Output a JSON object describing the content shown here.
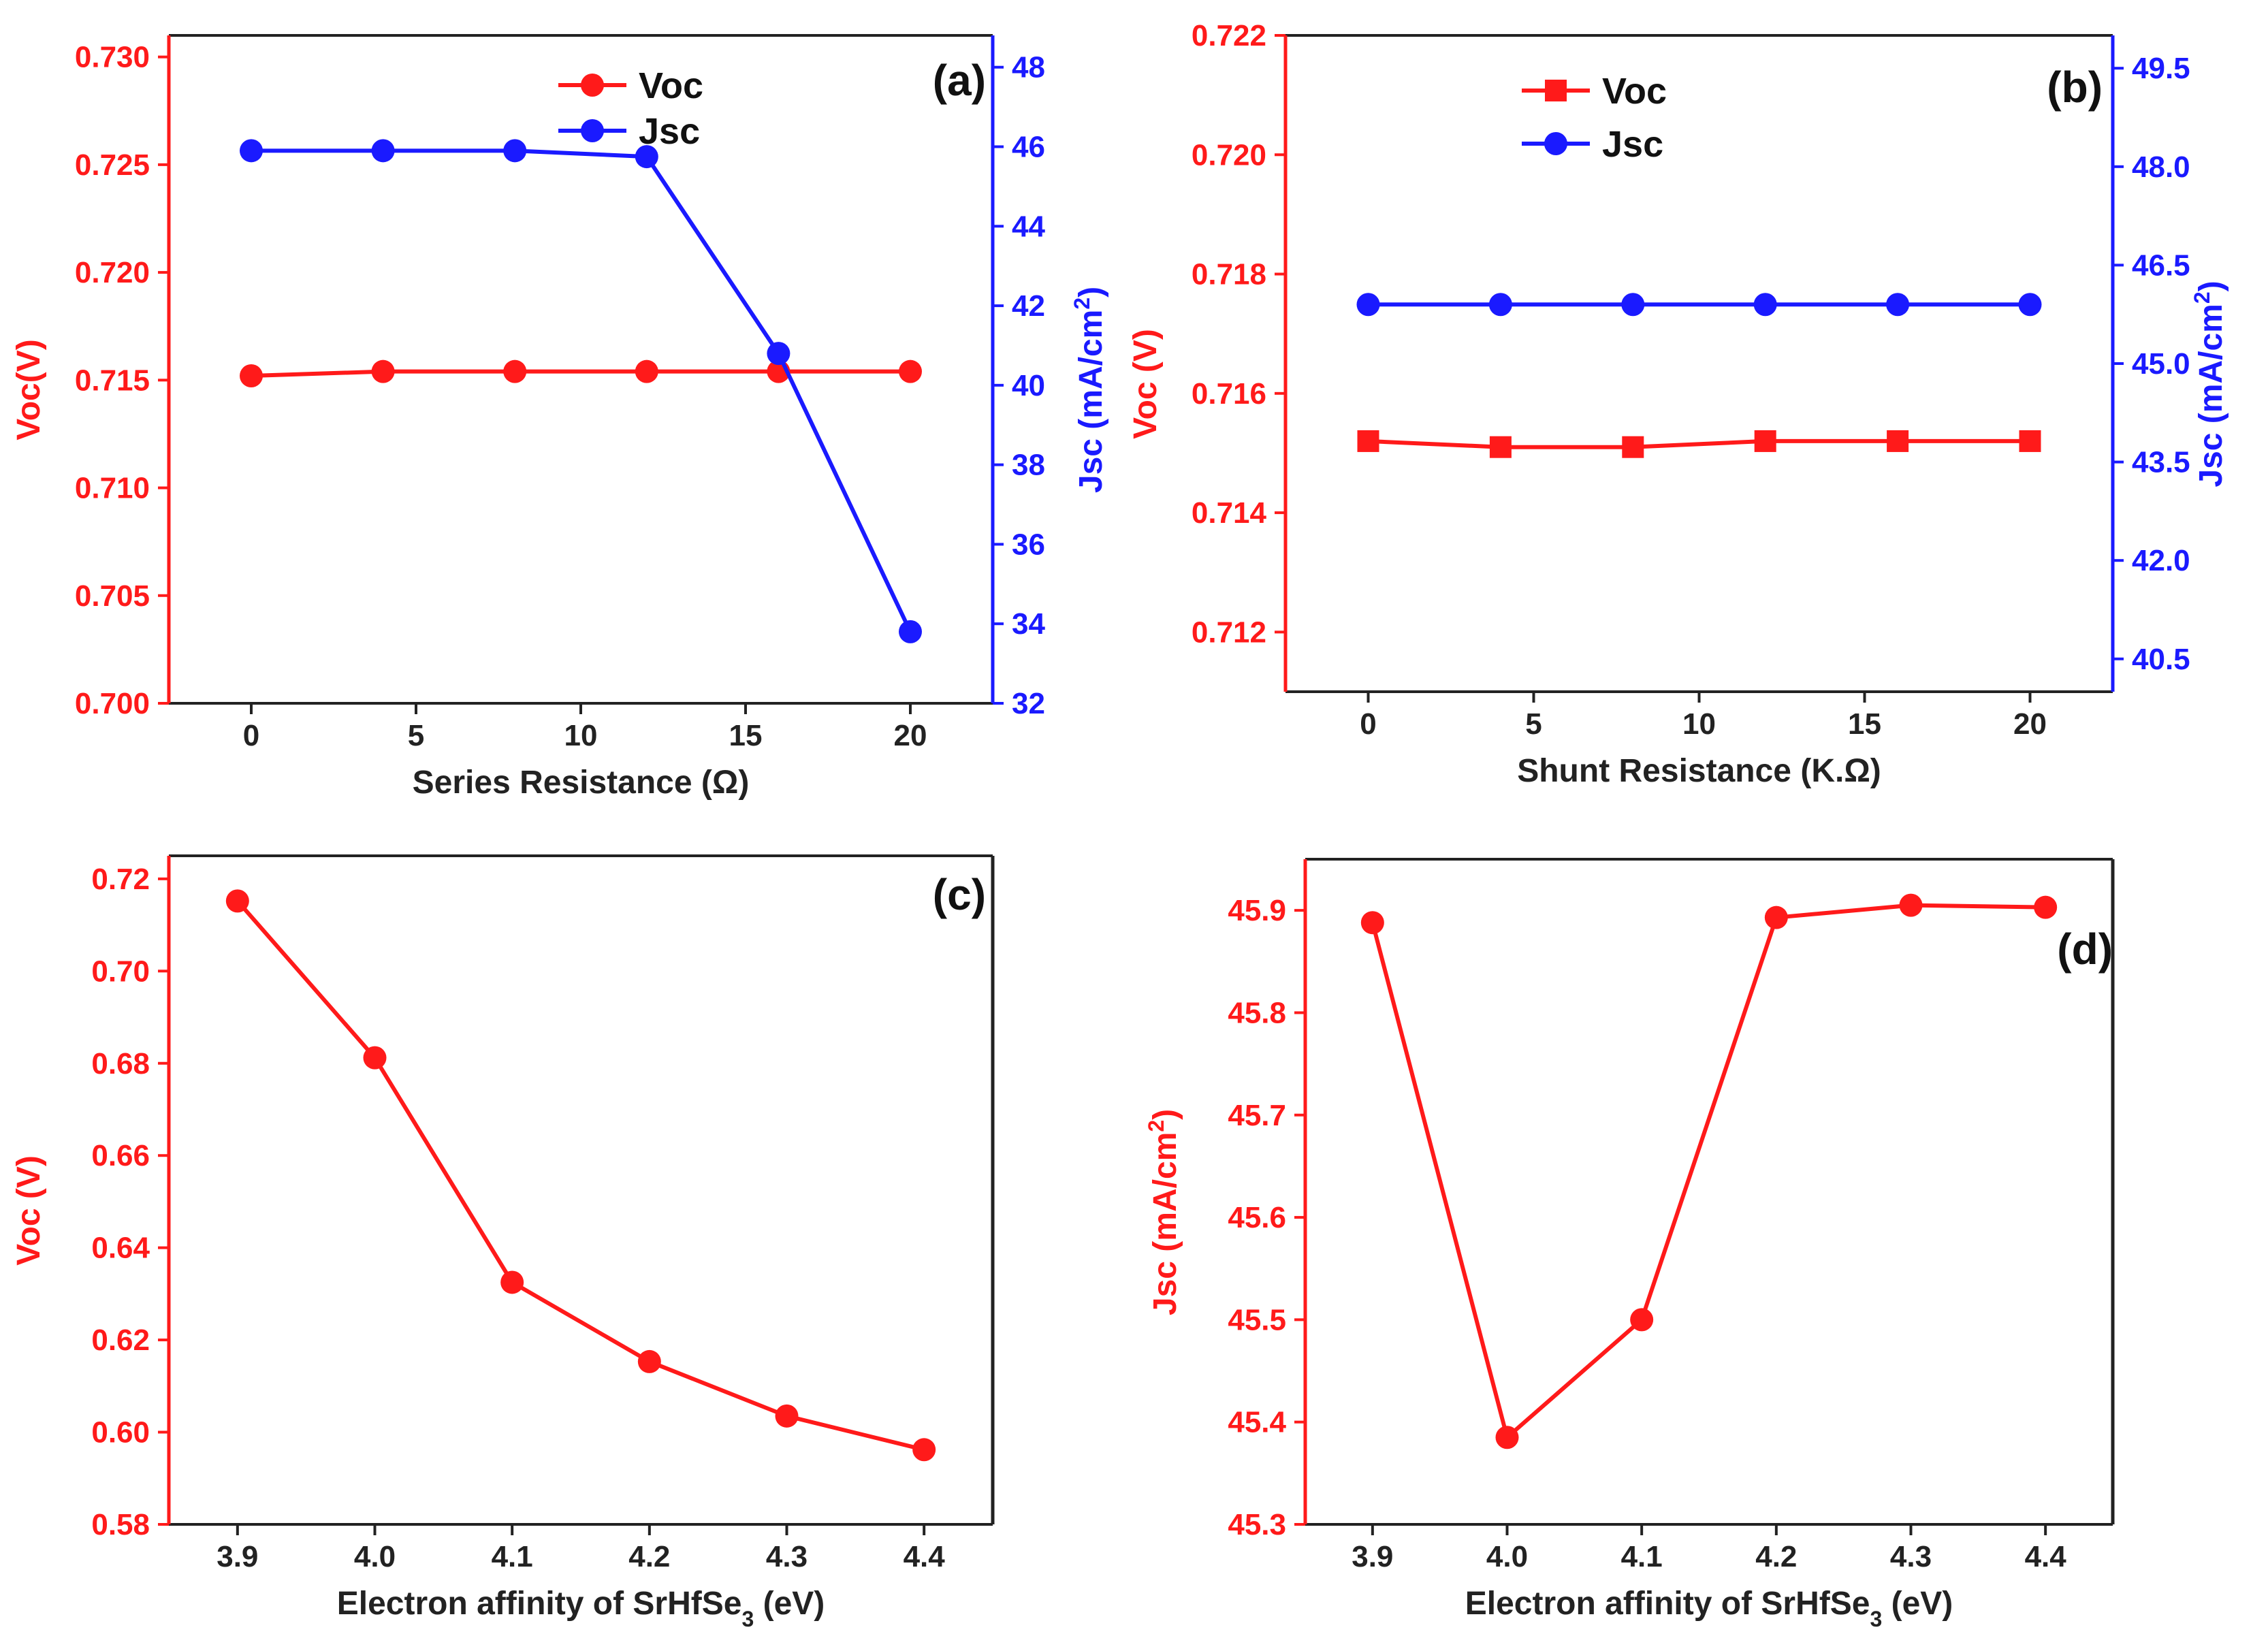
{
  "chart_data": [
    {
      "panel_label": "(a)",
      "type": "line",
      "xlabel": "Series Resistance (Ω)",
      "xlim": [
        -2.5,
        22.5
      ],
      "xticks": [
        0,
        5,
        10,
        15,
        20
      ],
      "x": [
        0,
        4,
        8,
        12,
        16,
        20
      ],
      "y_left": {
        "label": "Voc(V)",
        "color": "#ff1a1a",
        "lim": [
          0.7,
          0.731
        ],
        "ticks": [
          "0.700",
          "0.705",
          "0.710",
          "0.715",
          "0.720",
          "0.725",
          "0.730"
        ]
      },
      "y_right": {
        "label": "Jsc (mA/cm",
        "sup": "2",
        "label_end": ")",
        "color": "#1a1aff",
        "lim": [
          32,
          48.8
        ],
        "ticks": [
          "32",
          "34",
          "36",
          "38",
          "40",
          "42",
          "44",
          "46",
          "48"
        ]
      },
      "series": [
        {
          "name": "Voc",
          "axis": "left",
          "marker": "circle",
          "color": "#ff1a1a",
          "values": [
            0.7152,
            0.7154,
            0.7154,
            0.7154,
            0.7154,
            0.7154
          ]
        },
        {
          "name": "Jsc",
          "axis": "right",
          "marker": "circle",
          "color": "#1a1aff",
          "values": [
            45.9,
            45.9,
            45.9,
            45.75,
            40.8,
            33.8
          ]
        }
      ],
      "legend": "top-center"
    },
    {
      "panel_label": "(b)",
      "type": "line",
      "xlabel": "Shunt Resistance (K.Ω)",
      "xlim": [
        -2.5,
        22.5
      ],
      "xticks": [
        0,
        5,
        10,
        15,
        20
      ],
      "x": [
        0,
        4,
        8,
        12,
        16,
        20
      ],
      "y_left": {
        "label": "Voc (V)",
        "color": "#ff1a1a",
        "lim": [
          0.711,
          0.722
        ],
        "ticks": [
          "0.712",
          "0.714",
          "0.716",
          "0.718",
          "0.720",
          "0.722"
        ]
      },
      "y_right": {
        "label": "Jsc (mA/cm",
        "sup": "2",
        "label_end": ")",
        "color": "#1a1aff",
        "lim": [
          40.0,
          50.0
        ],
        "ticks": [
          "40.5",
          "42.0",
          "43.5",
          "45.0",
          "46.5",
          "48.0",
          "49.5"
        ]
      },
      "series": [
        {
          "name": "Voc",
          "axis": "left",
          "marker": "square",
          "color": "#ff1a1a",
          "values": [
            0.7152,
            0.7151,
            0.7151,
            0.7152,
            0.7152,
            0.7152
          ]
        },
        {
          "name": "Jsc",
          "axis": "right",
          "marker": "circle",
          "color": "#1a1aff",
          "values": [
            45.9,
            45.9,
            45.9,
            45.9,
            45.9,
            45.9
          ]
        }
      ],
      "legend": "top-left"
    },
    {
      "panel_label": "(c)",
      "type": "line",
      "xlabel": "Electron  affinity of SrHfSe",
      "xlabel_sub": "3",
      "xlabel_end": " (eV)",
      "xlim": [
        3.85,
        4.45
      ],
      "xticks": [
        "3.9",
        "4.0",
        "4.1",
        "4.2",
        "4.3",
        "4.4"
      ],
      "x": [
        3.9,
        4.0,
        4.1,
        4.2,
        4.3,
        4.4
      ],
      "y_left": {
        "label": "Voc (V)",
        "color": "#ff1a1a",
        "lim": [
          0.58,
          0.725
        ],
        "ticks": [
          "0.58",
          "0.60",
          "0.62",
          "0.64",
          "0.66",
          "0.68",
          "0.70",
          "0.72"
        ]
      },
      "series": [
        {
          "name": "Voc",
          "axis": "left",
          "marker": "circle",
          "color": "#ff1a1a",
          "values": [
            0.7152,
            0.6812,
            0.6325,
            0.6153,
            0.6035,
            0.5962
          ]
        }
      ]
    },
    {
      "panel_label": "(d)",
      "type": "line",
      "xlabel": "Electron  affinity of SrHfSe",
      "xlabel_sub": "3",
      "xlabel_end": " (eV)",
      "xlim": [
        3.85,
        4.45
      ],
      "xticks": [
        "3.9",
        "4.0",
        "4.1",
        "4.2",
        "4.3",
        "4.4"
      ],
      "x": [
        3.9,
        4.0,
        4.1,
        4.2,
        4.3,
        4.4
      ],
      "y_left": {
        "label": "Jsc (mA/cm",
        "sup": "2",
        "label_end": ")",
        "color": "#ff1a1a",
        "lim": [
          45.3,
          45.95
        ],
        "ticks": [
          "45.3",
          "45.4",
          "45.5",
          "45.6",
          "45.7",
          "45.8",
          "45.9"
        ]
      },
      "series": [
        {
          "name": "Jsc",
          "axis": "left",
          "marker": "circle",
          "color": "#ff1a1a",
          "values": [
            45.888,
            45.385,
            45.5,
            45.893,
            45.905,
            45.903
          ]
        }
      ]
    }
  ]
}
